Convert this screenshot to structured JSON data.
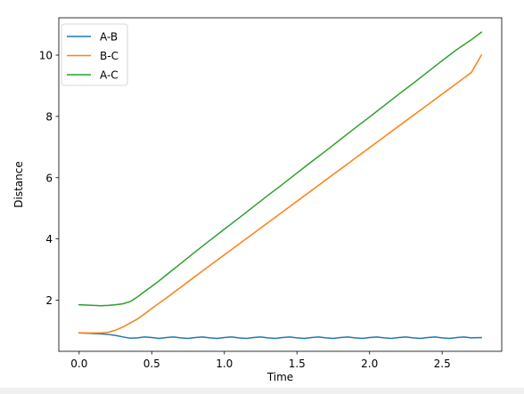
{
  "chart_data": {
    "type": "line",
    "xlabel": "Time",
    "ylabel": "Distance",
    "xlim": [
      -0.14,
      2.91
    ],
    "ylim": [
      0.33,
      11.22
    ],
    "xticks": [
      0.0,
      0.5,
      1.0,
      1.5,
      2.0,
      2.5
    ],
    "xtick_labels": [
      "0.0",
      "0.5",
      "1.0",
      "1.5",
      "2.0",
      "2.5"
    ],
    "yticks": [
      2,
      4,
      6,
      8,
      10
    ],
    "ytick_labels": [
      "2",
      "4",
      "6",
      "8",
      "10"
    ],
    "grid": false,
    "legend_position": "top-left",
    "series": [
      {
        "name": "A-B",
        "color": "#1f77b4",
        "x": [
          0.0,
          0.05,
          0.1,
          0.15,
          0.2,
          0.25,
          0.3,
          0.35,
          0.4,
          0.45,
          0.5,
          0.55,
          0.6,
          0.65,
          0.7,
          0.75,
          0.8,
          0.85,
          0.9,
          0.95,
          1.0,
          1.05,
          1.1,
          1.15,
          1.2,
          1.25,
          1.3,
          1.35,
          1.4,
          1.45,
          1.5,
          1.55,
          1.6,
          1.65,
          1.7,
          1.75,
          1.8,
          1.85,
          1.9,
          1.95,
          2.0,
          2.05,
          2.1,
          2.15,
          2.2,
          2.25,
          2.3,
          2.35,
          2.4,
          2.45,
          2.5,
          2.55,
          2.6,
          2.65,
          2.7,
          2.77
        ],
        "y": [
          0.93,
          0.92,
          0.91,
          0.9,
          0.88,
          0.85,
          0.8,
          0.76,
          0.77,
          0.8,
          0.78,
          0.75,
          0.78,
          0.8,
          0.77,
          0.75,
          0.78,
          0.8,
          0.77,
          0.75,
          0.78,
          0.8,
          0.77,
          0.75,
          0.78,
          0.8,
          0.77,
          0.75,
          0.78,
          0.8,
          0.77,
          0.75,
          0.78,
          0.8,
          0.77,
          0.75,
          0.78,
          0.8,
          0.77,
          0.75,
          0.78,
          0.8,
          0.77,
          0.75,
          0.78,
          0.8,
          0.77,
          0.75,
          0.78,
          0.8,
          0.77,
          0.75,
          0.78,
          0.8,
          0.77,
          0.78
        ]
      },
      {
        "name": "B-C",
        "color": "#ff7f0e",
        "x": [
          0.0,
          0.05,
          0.1,
          0.15,
          0.2,
          0.25,
          0.3,
          0.35,
          0.4,
          0.45,
          0.5,
          0.55,
          0.6,
          0.7,
          0.8,
          0.9,
          1.0,
          1.1,
          1.2,
          1.3,
          1.4,
          1.5,
          1.6,
          1.7,
          1.8,
          1.9,
          2.0,
          2.1,
          2.2,
          2.3,
          2.4,
          2.5,
          2.6,
          2.7,
          2.77
        ],
        "y": [
          0.93,
          0.93,
          0.93,
          0.93,
          0.95,
          1.02,
          1.12,
          1.25,
          1.38,
          1.55,
          1.73,
          1.9,
          2.07,
          2.42,
          2.78,
          3.13,
          3.48,
          3.83,
          4.18,
          4.53,
          4.88,
          5.23,
          5.58,
          5.93,
          6.28,
          6.63,
          6.98,
          7.33,
          7.68,
          8.03,
          8.38,
          8.73,
          9.08,
          9.43,
          10.0
        ]
      },
      {
        "name": "A-C",
        "color": "#2ca02c",
        "x": [
          0.0,
          0.05,
          0.1,
          0.15,
          0.2,
          0.25,
          0.3,
          0.35,
          0.4,
          0.45,
          0.5,
          0.55,
          0.6,
          0.7,
          0.8,
          0.9,
          1.0,
          1.1,
          1.2,
          1.3,
          1.4,
          1.5,
          1.6,
          1.7,
          1.8,
          1.9,
          2.0,
          2.1,
          2.2,
          2.3,
          2.4,
          2.5,
          2.6,
          2.7,
          2.77
        ],
        "y": [
          1.85,
          1.84,
          1.83,
          1.82,
          1.83,
          1.85,
          1.88,
          1.95,
          2.1,
          2.28,
          2.45,
          2.63,
          2.82,
          3.2,
          3.58,
          3.95,
          4.32,
          4.68,
          5.05,
          5.42,
          5.78,
          6.15,
          6.52,
          6.88,
          7.25,
          7.62,
          7.98,
          8.35,
          8.72,
          9.08,
          9.45,
          9.82,
          10.18,
          10.5,
          10.75
        ]
      }
    ]
  }
}
